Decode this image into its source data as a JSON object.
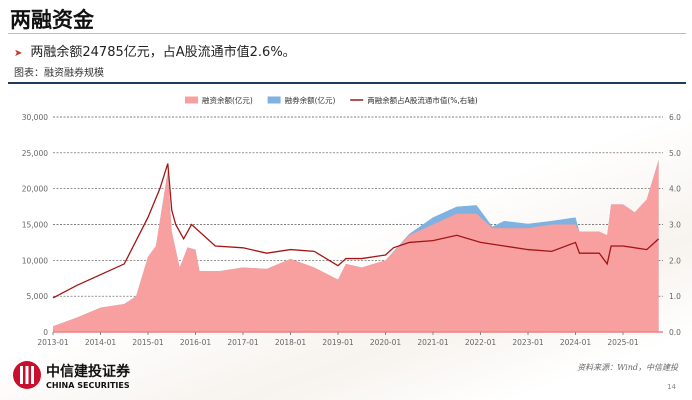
{
  "slide": {
    "title": "两融资金",
    "bullet": "两融余额24785亿元，占A股流通市值2.6%。",
    "caption": "图表：融资融券规模",
    "source": "资料来源：Wind，中信建投",
    "page_number": "14",
    "logo": {
      "cn": "中信建投证券",
      "en": "CHINA SECURITIES"
    }
  },
  "chart_data": {
    "type": "area",
    "title": "",
    "legend_position": "top",
    "grid": true,
    "x_ticks": [
      "2013-01",
      "2014-01",
      "2015-01",
      "2016-01",
      "2017-01",
      "2018-01",
      "2019-01",
      "2020-01",
      "2021-01",
      "2022-01",
      "2023-01",
      "2024-01",
      "2025-01"
    ],
    "y_left": {
      "lim": [
        0,
        30000
      ],
      "ticks": [
        "0",
        "5,000",
        "10,000",
        "15,000",
        "20,000",
        "25,000",
        "30,000"
      ]
    },
    "y_right": {
      "lim": [
        0,
        6
      ],
      "ticks": [
        "0.0",
        "1.0",
        "2.0",
        "3.0",
        "4.0",
        "5.0",
        "6.0"
      ]
    },
    "series": [
      {
        "name": "融资余额(亿元)",
        "kind": "area",
        "color": "#f8a0a0",
        "x": [
          "2013-01",
          "2013-07",
          "2014-01",
          "2014-07",
          "2014-10",
          "2015-01",
          "2015-03",
          "2015-06",
          "2015-07",
          "2015-09",
          "2015-11",
          "2016-01",
          "2016-02",
          "2016-07",
          "2017-01",
          "2017-07",
          "2018-01",
          "2018-07",
          "2019-01",
          "2019-03",
          "2019-07",
          "2020-01",
          "2020-07",
          "2021-01",
          "2021-07",
          "2021-12",
          "2022-04",
          "2022-07",
          "2023-01",
          "2023-07",
          "2024-01",
          "2024-02",
          "2024-07",
          "2024-09",
          "2024-10",
          "2025-01",
          "2025-04",
          "2025-07",
          "2025-10"
        ],
        "values": [
          800,
          2000,
          3400,
          3900,
          5000,
          10500,
          12000,
          22500,
          14000,
          9000,
          11800,
          11500,
          8500,
          8500,
          9000,
          8800,
          10200,
          9000,
          7300,
          9500,
          9000,
          10000,
          13500,
          15000,
          16500,
          16500,
          14500,
          14500,
          14500,
          15000,
          15000,
          14000,
          14000,
          13500,
          17800,
          17800,
          16700,
          18500,
          24000
        ]
      },
      {
        "name": "融券余额(亿元)",
        "kind": "stacked-area",
        "color": "#7fb2e0",
        "x": [
          "2020-01",
          "2020-07",
          "2021-01",
          "2021-07",
          "2021-12",
          "2022-04",
          "2022-07",
          "2023-01",
          "2023-07",
          "2024-01",
          "2024-02",
          "2024-07",
          "2024-09",
          "2024-10"
        ],
        "values": [
          0,
          200,
          1000,
          1000,
          1200,
          200,
          1000,
          600,
          500,
          1000,
          0,
          0,
          0,
          0
        ]
      },
      {
        "name": "两融余额占A股流通市值(%,右轴)",
        "kind": "line",
        "axis": "right",
        "color": "#a31515",
        "x": [
          "2013-01",
          "2013-07",
          "2014-01",
          "2014-07",
          "2015-01",
          "2015-04",
          "2015-06",
          "2015-07",
          "2015-08",
          "2015-10",
          "2015-12",
          "2016-06",
          "2017-01",
          "2017-07",
          "2018-01",
          "2018-07",
          "2019-01",
          "2019-03",
          "2019-07",
          "2020-01",
          "2020-03",
          "2020-07",
          "2021-01",
          "2021-07",
          "2022-01",
          "2022-07",
          "2023-01",
          "2023-07",
          "2024-01",
          "2024-02",
          "2024-07",
          "2024-09",
          "2024-10",
          "2025-01",
          "2025-07",
          "2025-10"
        ],
        "values": [
          0.95,
          1.3,
          1.6,
          1.9,
          3.2,
          4.0,
          4.7,
          3.4,
          3.0,
          2.6,
          3.0,
          2.4,
          2.35,
          2.2,
          2.3,
          2.25,
          1.85,
          2.05,
          2.05,
          2.15,
          2.35,
          2.5,
          2.55,
          2.7,
          2.5,
          2.4,
          2.3,
          2.25,
          2.5,
          2.2,
          2.2,
          1.9,
          2.4,
          2.4,
          2.3,
          2.6
        ]
      }
    ]
  }
}
